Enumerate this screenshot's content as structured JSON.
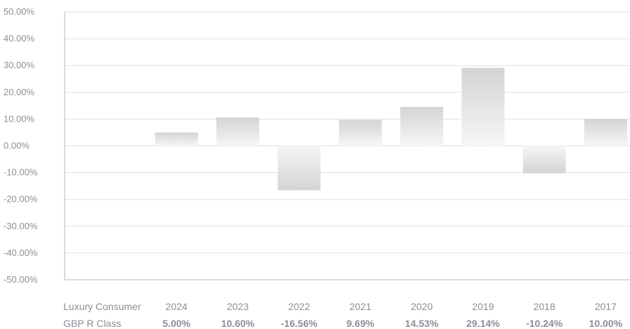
{
  "chart_data": {
    "type": "bar",
    "categories": [
      "2024",
      "2023",
      "2022",
      "2021",
      "2020",
      "2019",
      "2018",
      "2017"
    ],
    "series": [
      {
        "name": "Luxury Consumer GBP R Class",
        "name_lines": [
          "Luxury Consumer",
          "GBP R Class"
        ],
        "values": [
          5.0,
          10.6,
          -16.56,
          9.69,
          14.53,
          29.14,
          -10.24,
          10.0
        ],
        "value_labels": [
          "5.00%",
          "10.60%",
          "-16.56%",
          "9.69%",
          "14.53%",
          "29.14%",
          "-10.24%",
          "10.00%"
        ]
      }
    ],
    "y_ticks": [
      "50.00%",
      "40.00%",
      "30.00%",
      "20.00%",
      "10.00%",
      "0.00%",
      "-10.00%",
      "-20.00%",
      "-30.00%",
      "-40.00%",
      "-50.00%"
    ],
    "ylim": [
      -50,
      50
    ],
    "title": "",
    "xlabel": "",
    "ylabel": "",
    "grid": true,
    "colors": {
      "bar_top": "#d4d4d4",
      "bar_bottom": "#f6f6f6",
      "grid": "#e1e1e1",
      "axis": "#cfcfcf",
      "text": "#8a8f96"
    }
  }
}
